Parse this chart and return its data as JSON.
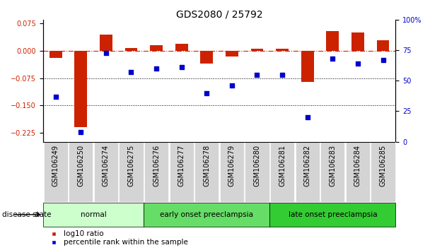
{
  "title": "GDS2080 / 25792",
  "samples": [
    "GSM106249",
    "GSM106250",
    "GSM106274",
    "GSM106275",
    "GSM106276",
    "GSM106277",
    "GSM106278",
    "GSM106279",
    "GSM106280",
    "GSM106281",
    "GSM106282",
    "GSM106283",
    "GSM106284",
    "GSM106285"
  ],
  "log10_ratio": [
    -0.02,
    -0.21,
    0.045,
    0.008,
    0.015,
    0.02,
    -0.035,
    -0.015,
    0.005,
    0.005,
    -0.085,
    0.055,
    0.05,
    0.03
  ],
  "percentile_rank": [
    37,
    8,
    73,
    57,
    60,
    61,
    40,
    46,
    55,
    55,
    20,
    68,
    64,
    67
  ],
  "groups": [
    {
      "label": "normal",
      "start": 0,
      "end": 4,
      "color": "#ccffcc"
    },
    {
      "label": "early onset preeclampsia",
      "start": 4,
      "end": 9,
      "color": "#66dd66"
    },
    {
      "label": "late onset preeclampsia",
      "start": 9,
      "end": 14,
      "color": "#33cc33"
    }
  ],
  "ylim_left": [
    -0.25,
    0.085
  ],
  "ylim_right": [
    0,
    100
  ],
  "yticks_left": [
    0.075,
    0,
    -0.075,
    -0.15,
    -0.225
  ],
  "yticks_right": [
    100,
    75,
    50,
    25,
    0
  ],
  "hlines": [
    -0.075,
    -0.15
  ],
  "bar_color": "#cc2200",
  "dot_color": "#0000cc",
  "dashed_line_color": "#cc2200",
  "bg_color": "#ffffff",
  "legend_bar_label": "log10 ratio",
  "legend_dot_label": "percentile rank within the sample",
  "disease_state_label": "disease state",
  "title_fontsize": 10,
  "tick_fontsize": 7,
  "label_fontsize": 7.5
}
